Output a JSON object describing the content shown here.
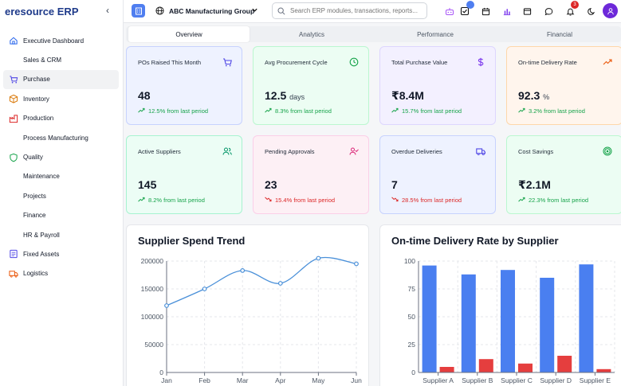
{
  "app": {
    "brand": "eresource ERP"
  },
  "sidebar": {
    "items": [
      {
        "label": "Executive Dashboard",
        "icon": "home-icon"
      },
      {
        "label": "Sales & CRM",
        "icon": ""
      },
      {
        "label": "Purchase",
        "icon": "cart-icon",
        "active": true
      },
      {
        "label": "Inventory",
        "icon": "box-icon"
      },
      {
        "label": "Production",
        "icon": "factory-icon"
      },
      {
        "label": "Process Manufacturing",
        "icon": ""
      },
      {
        "label": "Quality",
        "icon": "shield-icon"
      },
      {
        "label": "Maintenance",
        "icon": ""
      },
      {
        "label": "Projects",
        "icon": ""
      },
      {
        "label": "Finance",
        "icon": ""
      },
      {
        "label": "HR & Payroll",
        "icon": ""
      },
      {
        "label": "Fixed Assets",
        "icon": "ledger-icon"
      },
      {
        "label": "Logistics",
        "icon": "truck-icon"
      }
    ]
  },
  "header": {
    "company": "ABC Manufacturing Group",
    "search_placeholder": "Search ERP modules, transactions, reports...",
    "tasks_badge": "",
    "notifications_badge": "3"
  },
  "tabs": [
    "Overview",
    "Analytics",
    "Performance",
    "Financial"
  ],
  "kpis": [
    {
      "title": "POs Raised This Month",
      "value": "48",
      "unit": "",
      "change": "12.5% from last period",
      "trend": "up",
      "bg": "#eef2ff",
      "border": "#c7d2fe",
      "icon": "cart-icon",
      "icon_color": "#4f46e5"
    },
    {
      "title": "Avg Procurement Cycle",
      "value": "12.5",
      "unit": "days",
      "change": "8.3% from last period",
      "trend": "up",
      "bg": "#ecfdf3",
      "border": "#bbf7d0",
      "icon": "clock-icon",
      "icon_color": "#16a34a"
    },
    {
      "title": "Total Purchase Value",
      "value": "₹8.4M",
      "unit": "",
      "change": "15.7% from last period",
      "trend": "up",
      "bg": "#f3f0ff",
      "border": "#ddd6fe",
      "icon": "dollar-icon",
      "icon_color": "#7c3aed"
    },
    {
      "title": "On-time Delivery Rate",
      "value": "92.3",
      "unit": "%",
      "change": "3.2% from last period",
      "trend": "up",
      "bg": "#fff5ed",
      "border": "#fed7aa",
      "icon": "trend-up-icon",
      "icon_color": "#ea580c"
    },
    {
      "title": "Active Suppliers",
      "value": "145",
      "unit": "",
      "change": "8.2% from last period",
      "trend": "up",
      "bg": "#ecfdf5",
      "border": "#a7f3d0",
      "icon": "users-icon",
      "icon_color": "#059669"
    },
    {
      "title": "Pending Approvals",
      "value": "23",
      "unit": "",
      "change": "15.4% from last period",
      "trend": "down",
      "bg": "#fdf0f5",
      "border": "#fbcfe8",
      "icon": "user-check-icon",
      "icon_color": "#db2777"
    },
    {
      "title": "Overdue Deliveries",
      "value": "7",
      "unit": "",
      "change": "28.5% from last period",
      "trend": "down",
      "bg": "#eef2ff",
      "border": "#c7d2fe",
      "icon": "truck-icon",
      "icon_color": "#4f46e5"
    },
    {
      "title": "Cost Savings",
      "value": "₹2.1M",
      "unit": "",
      "change": "22.3% from last period",
      "trend": "up",
      "bg": "#ecfdf3",
      "border": "#bbf7d0",
      "icon": "target-icon",
      "icon_color": "#16a34a"
    }
  ],
  "colors": {
    "up": "#16a34a",
    "down": "#dc2626",
    "line": "#4a90d9",
    "bar_blue": "#4a7ff0",
    "bar_red": "#e53e3e"
  },
  "chart_data": [
    {
      "type": "line",
      "title": "Supplier Spend Trend",
      "x": [
        "Jan",
        "Feb",
        "Mar",
        "Apr",
        "May",
        "Jun"
      ],
      "series": [
        {
          "values": [
            120000,
            150000,
            183000,
            160000,
            205000,
            195000
          ]
        }
      ],
      "ylim": [
        0,
        200000
      ],
      "yticks": [
        0,
        50000,
        100000,
        150000,
        200000
      ],
      "grid": true
    },
    {
      "type": "bar",
      "title": "On-time Delivery Rate by Supplier",
      "categories": [
        "Supplier A",
        "Supplier B",
        "Supplier C",
        "Supplier D",
        "Supplier E"
      ],
      "series": [
        {
          "values": [
            96,
            88,
            92,
            85,
            97
          ]
        },
        {
          "values": [
            5,
            12,
            8,
            15,
            3
          ]
        }
      ],
      "ylim": [
        0,
        100
      ],
      "yticks": [
        0,
        25,
        50,
        75,
        100
      ],
      "grid": true
    }
  ]
}
